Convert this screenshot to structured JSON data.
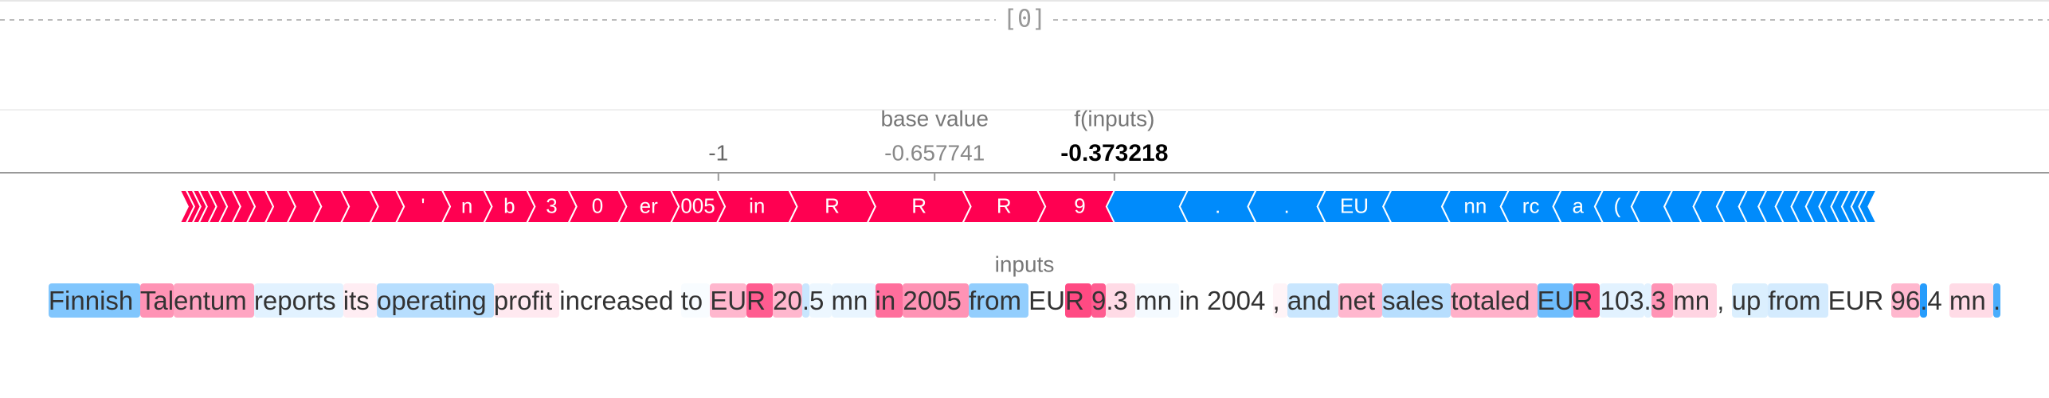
{
  "header": "[0]",
  "chart_data": {
    "type": "force",
    "base_value_label": "base value",
    "output_label": "f(inputs)",
    "base_value": -0.657741,
    "output_value": -0.373218,
    "xlim": [
      -2.137,
      1.106
    ],
    "xticks": [
      -1
    ],
    "inputs_label": "inputs",
    "positive_color": "#ff0051",
    "negative_color": "#008bfb",
    "segments": {
      "labels": [
        "9",
        "R",
        "R",
        "R",
        "in",
        "005",
        "er",
        "0",
        "3",
        "b",
        "n",
        "'",
        null,
        null,
        null,
        null,
        null,
        null,
        null,
        null,
        null,
        null,
        null,
        null,
        null,
        null,
        ".",
        ".",
        "EU",
        null,
        "nn",
        "rc",
        "a",
        "(",
        null,
        null,
        null,
        null,
        null,
        null,
        null,
        null,
        null,
        null,
        null,
        null,
        null,
        null
      ],
      "values": [
        0.122,
        0.118,
        0.151,
        0.124,
        0.114,
        0.073,
        0.083,
        0.079,
        0.066,
        0.068,
        0.066,
        0.073,
        0.041,
        0.046,
        0.044,
        0.041,
        0.035,
        0.029,
        0.023,
        0.021,
        0.017,
        0.015,
        0.01,
        0.01,
        0.01,
        -0.116,
        -0.108,
        -0.11,
        -0.104,
        -0.093,
        -0.093,
        -0.083,
        -0.066,
        -0.058,
        -0.052,
        -0.046,
        -0.037,
        -0.035,
        -0.031,
        -0.027,
        -0.025,
        -0.023,
        -0.021,
        -0.019,
        -0.017,
        -0.015,
        -0.012,
        -0.015
      ]
    },
    "tokens": {
      "texts": [
        "Finnish ",
        "Tal",
        "entum ",
        "reports ",
        "its ",
        "operating ",
        "profit ",
        "increased ",
        "to ",
        "EU",
        "R ",
        "20",
        ".",
        "5 ",
        "mn ",
        "in ",
        "2005 ",
        "from ",
        "EU",
        "R ",
        "9",
        ".3 ",
        "mn ",
        "in ",
        "2004 ",
        ", ",
        "and ",
        "net ",
        "sales ",
        "totaled ",
        "EU",
        "R ",
        "103",
        ".",
        "3 ",
        "mn ",
        ", ",
        "up ",
        "from ",
        "EUR ",
        "96",
        ".",
        "4 ",
        "mn ",
        "."
      ],
      "values": [
        -0.35,
        0.3,
        0.25,
        -0.08,
        0.05,
        -0.2,
        0.06,
        0.0,
        -0.02,
        0.2,
        0.45,
        0.2,
        -0.15,
        -0.05,
        -0.06,
        0.4,
        0.3,
        -0.3,
        0.0,
        0.5,
        0.45,
        0.1,
        -0.03,
        0.0,
        0.0,
        0.03,
        -0.15,
        0.2,
        -0.2,
        0.22,
        -0.4,
        0.5,
        -0.08,
        -0.08,
        0.3,
        0.12,
        0.0,
        -0.1,
        -0.12,
        0.0,
        0.2,
        -0.6,
        0.0,
        0.1,
        -0.5
      ]
    }
  }
}
